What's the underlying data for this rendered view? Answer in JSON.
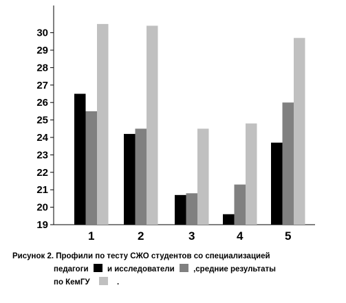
{
  "chart_data": {
    "type": "bar",
    "categories": [
      "1",
      "2",
      "3",
      "4",
      "5"
    ],
    "series": [
      {
        "values": [
          26.5,
          24.2,
          20.7,
          19.6,
          23.7
        ],
        "color": "#000000"
      },
      {
        "values": [
          25.5,
          24.5,
          20.8,
          21.3,
          26.0
        ],
        "color": "#808080"
      },
      {
        "values": [
          30.5,
          30.4,
          24.5,
          24.8,
          29.7
        ],
        "color": "#c0c0c0"
      }
    ],
    "yticks": [
      "19",
      "20",
      "21",
      "22",
      "23",
      "24",
      "25",
      "26",
      "27",
      "28",
      "29",
      "30"
    ],
    "ylim": [
      19,
      31
    ],
    "grid": false,
    "title": "",
    "xlabel": "",
    "ylabel": ""
  },
  "caption": {
    "line1": "Рисунок 2. Профили по тесту СЖО студентов со специализацией",
    "line2_a": "педагоги",
    "line2_b": "и исследователи",
    "line2_c": ",средние результаты",
    "line3_a": "по КемГУ",
    "line3_b": "."
  }
}
